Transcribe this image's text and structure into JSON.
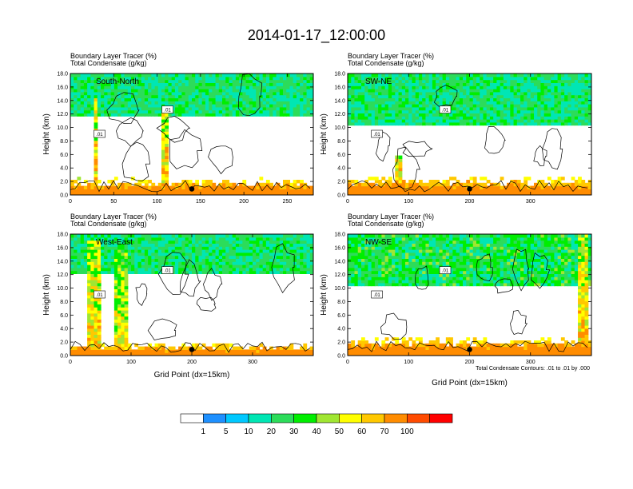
{
  "figure_title": "2014-01-17_12:00:00",
  "x_axis_title": "Grid Point (dx=15km)",
  "contour_note": "Total Condensate Contours: .01 to .01 by .000",
  "chart_data": [
    {
      "type": "heatmap",
      "panel_label": "South-North",
      "header_line1": "Boundary Layer Tracer   (%)",
      "header_line2": "Total Condensate   (g/kg)",
      "ylabel": "Height (km)",
      "xlabel": "",
      "xlim": [
        0,
        280
      ],
      "ylim": [
        0,
        18
      ],
      "x_ticks": [
        "0",
        "50",
        "100",
        "150",
        "200",
        "250"
      ],
      "y_ticks": [
        "0.0",
        "2.0",
        "4.0",
        "6.0",
        "8.0",
        "10.0",
        "12.0",
        "14.0",
        "16.0",
        "18.0"
      ],
      "contour_level_label": ".01",
      "point_marker_x": 140,
      "features": [
        {
          "kind": "boundary_layer",
          "x0": 0,
          "x1": 280,
          "top": 1.6,
          "value": 75
        },
        {
          "kind": "plume",
          "x": 30,
          "width": 6,
          "top": 14.5,
          "value": 70
        },
        {
          "kind": "plume",
          "x": 108,
          "width": 7,
          "top": 12.5,
          "value": 70
        },
        {
          "kind": "layer",
          "x0": 0,
          "x1": 280,
          "y0": 11.5,
          "y1": 18,
          "value": 25
        },
        {
          "kind": "clear_region",
          "x0": 120,
          "x1": 275,
          "y0": 3.0,
          "y1": 12.5
        }
      ]
    },
    {
      "type": "heatmap",
      "panel_label": "SW-NE",
      "header_line1": "Boundary Layer Tracer   (%)",
      "header_line2": "Total Condensate   (g/kg)",
      "ylabel": "Height (km)",
      "xlabel": "",
      "xlim": [
        0,
        400
      ],
      "ylim": [
        0,
        18
      ],
      "x_ticks": [
        "0",
        "100",
        "200",
        "300"
      ],
      "y_ticks": [
        "0.0",
        "2.0",
        "4.0",
        "6.0",
        "8.0",
        "10.0",
        "12.0",
        "14.0",
        "16.0",
        "18.0"
      ],
      "contour_level_label": ".01",
      "point_marker_x": 200,
      "features": [
        {
          "kind": "boundary_layer",
          "x0": 0,
          "x1": 400,
          "top": 1.8,
          "value": 75
        },
        {
          "kind": "plume",
          "x": 85,
          "width": 10,
          "top": 6.0,
          "value": 70
        },
        {
          "kind": "layer",
          "x0": 0,
          "x1": 400,
          "y0": 10.5,
          "y1": 18,
          "value": 25
        },
        {
          "kind": "clear_region",
          "x0": 170,
          "x1": 395,
          "y0": 3.2,
          "y1": 11.0
        }
      ]
    },
    {
      "type": "heatmap",
      "panel_label": "West-East",
      "header_line1": "Boundary Layer Tracer   (%)",
      "header_line2": "Total Condensate   (g/kg)",
      "ylabel": "Height (km)",
      "xlabel": "Grid Point (dx=15km)",
      "xlim": [
        0,
        400
      ],
      "ylim": [
        0,
        18
      ],
      "x_ticks": [
        "0",
        "100",
        "200",
        "300"
      ],
      "y_ticks": [
        "0.0",
        "2.0",
        "4.0",
        "6.0",
        "8.0",
        "10.0",
        "12.0",
        "14.0",
        "16.0",
        "18.0"
      ],
      "contour_level_label": ".01",
      "point_marker_x": 200,
      "features": [
        {
          "kind": "boundary_layer",
          "x0": 0,
          "x1": 400,
          "top": 1.2,
          "value": 75
        },
        {
          "kind": "plume",
          "x": 40,
          "width": 25,
          "top": 17.0,
          "value": 65
        },
        {
          "kind": "plume",
          "x": 85,
          "width": 20,
          "top": 16.0,
          "value": 60
        },
        {
          "kind": "layer",
          "x0": 0,
          "x1": 400,
          "y0": 12.0,
          "y1": 18,
          "value": 25
        },
        {
          "kind": "clear_region",
          "x0": 140,
          "x1": 395,
          "y0": 2.0,
          "y1": 12.5
        }
      ]
    },
    {
      "type": "heatmap",
      "panel_label": "NW-SE",
      "header_line1": "Boundary Layer Tracer   (%)",
      "header_line2": "Total Condensate   (g/kg)",
      "ylabel": "Height (km)",
      "xlabel": "Grid Point (dx=15km)",
      "xlim": [
        0,
        400
      ],
      "ylim": [
        0,
        18
      ],
      "x_ticks": [
        "0",
        "100",
        "200",
        "300"
      ],
      "y_ticks": [
        "0.0",
        "2.0",
        "4.0",
        "6.0",
        "8.0",
        "10.0",
        "12.0",
        "14.0",
        "16.0",
        "18.0"
      ],
      "contour_level_label": ".01",
      "point_marker_x": 200,
      "features": [
        {
          "kind": "boundary_layer",
          "x0": 0,
          "x1": 400,
          "top": 1.8,
          "value": 75
        },
        {
          "kind": "plume",
          "x": 385,
          "width": 18,
          "top": 18.0,
          "value": 70
        },
        {
          "kind": "layer",
          "x0": 0,
          "x1": 400,
          "y0": 10.5,
          "y1": 18,
          "value": 30
        },
        {
          "kind": "clear_region",
          "x0": 110,
          "x1": 370,
          "y0": 3.0,
          "y1": 11.0
        }
      ]
    }
  ],
  "colorbar": {
    "labels": [
      "1",
      "5",
      "10",
      "20",
      "30",
      "40",
      "50",
      "60",
      "70",
      "100"
    ],
    "colors": [
      "#ffffff",
      "#1e90ff",
      "#00c8ff",
      "#00e6b4",
      "#2cdc5a",
      "#00ee00",
      "#a0e632",
      "#ffff00",
      "#ffc800",
      "#ff8c00",
      "#ff4b00",
      "#ff0000"
    ]
  }
}
